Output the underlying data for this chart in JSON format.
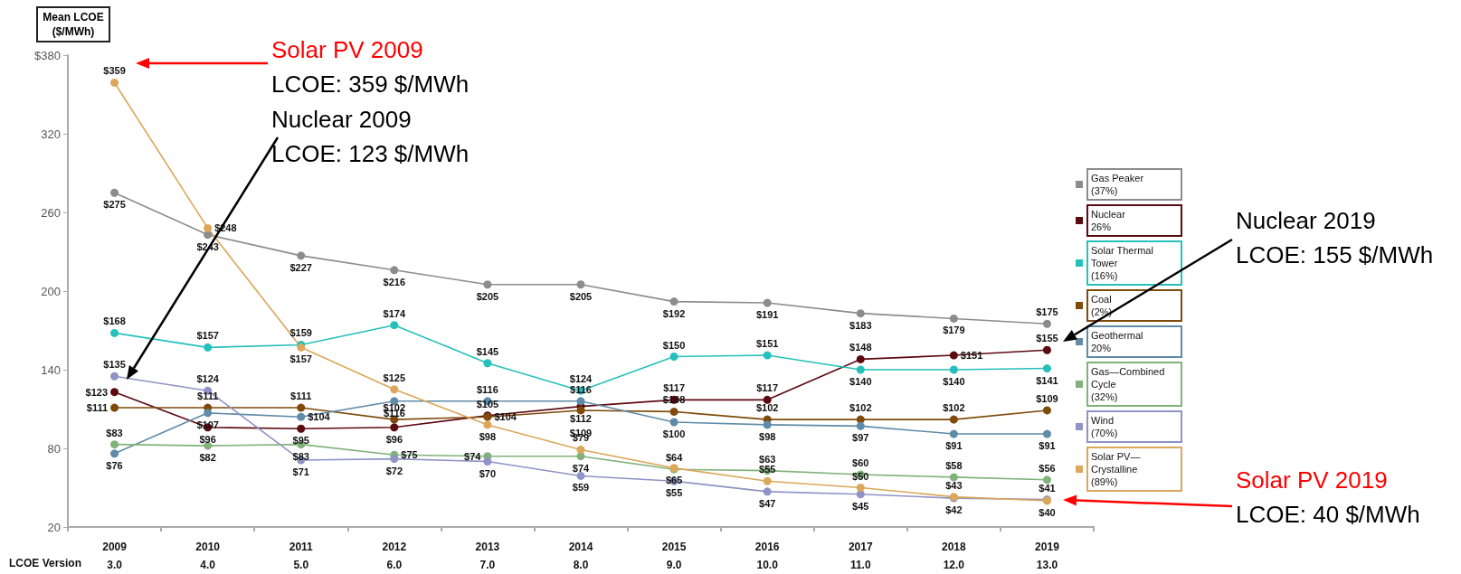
{
  "chart_data": {
    "type": "line",
    "ylabel": "Mean LCOE ($/MWh)",
    "categories": [
      "2009\n3.0",
      "2010\n4.0",
      "2011\n5.0",
      "2012\n6.0",
      "2013\n7.0",
      "2014\n8.0",
      "2015\n9.0",
      "2016\n10.0",
      "2017\n11.0",
      "2018\n12.0",
      "2019\n13.0"
    ],
    "ylim": [
      20,
      380
    ],
    "yticks": [
      20,
      80,
      140,
      200,
      260,
      320,
      {
        "value": 380,
        "label": "$380"
      }
    ],
    "grid": false,
    "legend": "right",
    "marker": "circle",
    "line_style": "solid",
    "series": [
      {
        "name": "Gas Peaker\n(37%)",
        "color": "#8c8c8c",
        "values": [
          275,
          243,
          227,
          216,
          205,
          205,
          192,
          191,
          183,
          179,
          175
        ],
        "value_labels": [
          "$275",
          "$243",
          "$227",
          "$216",
          "$205",
          "$205",
          "$192",
          "$191",
          "$183",
          "$179",
          "$175"
        ]
      },
      {
        "name": "Nuclear\n26%",
        "color": "#5c0a10",
        "values": [
          123,
          96,
          95,
          96,
          105,
          112,
          117,
          117,
          148,
          151,
          155
        ],
        "value_labels": [
          "$123",
          "$96",
          "$95",
          "$96",
          "$105",
          "$112",
          "$117",
          "$117",
          "$148",
          "$151",
          "$155"
        ]
      },
      {
        "name": "Solar Thermal\nTower\n(16%)",
        "color": "#25c0bb",
        "values": [
          168,
          157,
          159,
          174,
          145,
          124,
          150,
          151,
          140,
          140,
          141
        ],
        "value_labels": [
          "$168",
          "$157",
          "$159",
          "$174",
          "$145",
          "$124",
          "$150",
          "$151",
          "$140",
          "$140",
          "$141"
        ]
      },
      {
        "name": "Coal\n(2%)",
        "color": "#7f4a0a",
        "values": [
          111,
          111,
          111,
          102,
          104,
          109,
          108,
          102,
          102,
          102,
          109
        ],
        "value_labels": [
          "$111",
          "$111",
          "$111",
          "$102",
          "$104",
          "$109",
          "$108",
          "$102",
          "$102",
          "$102",
          "$109"
        ]
      },
      {
        "name": "Geothermal\n20%",
        "color": "#5f8ba8",
        "values": [
          76,
          107,
          104,
          116,
          116,
          116,
          100,
          98,
          97,
          91,
          91
        ],
        "value_labels": [
          "$76",
          "$107",
          "$104",
          "$116",
          "$116",
          "$116",
          "$100",
          "$98",
          "$97",
          "$91",
          "$91"
        ]
      },
      {
        "name": "Gas—Combined\nCycle\n(32%)",
        "color": "#80b27a",
        "values": [
          83,
          82,
          83,
          75,
          74,
          74,
          64,
          63,
          60,
          58,
          56
        ],
        "value_labels": [
          "$83",
          "$82",
          "$83",
          "$75",
          "$74",
          "$74",
          "$64",
          "$63",
          "$60",
          "$58",
          "$56"
        ]
      },
      {
        "name": "Wind\n(70%)",
        "color": "#8f93c5",
        "values": [
          135,
          124,
          71,
          72,
          70,
          59,
          55,
          47,
          45,
          42,
          41
        ],
        "value_labels": [
          "$135",
          "$124",
          "$71",
          "$72",
          "$70",
          "$59",
          "$55",
          "$47",
          "$45",
          "$42",
          "$41"
        ]
      },
      {
        "name": "Solar PV—\nCrystalline\n(89%)",
        "color": "#dba75a",
        "values": [
          359,
          248,
          157,
          125,
          98,
          79,
          65,
          55,
          50,
          43,
          40
        ],
        "value_labels": [
          "$359",
          "$248",
          "$157",
          "$125",
          "$98",
          "$79",
          "$65",
          "$55",
          "$50",
          "$43",
          "$40"
        ]
      }
    ],
    "annotations": [
      "LCOE Version",
      "Solar PV 2009\nLCOE: 359 $/MWh",
      "Nuclear 2009\nLCOE: 123 $/MWh",
      "Nuclear 2019\nLCOE: 155 $/MWh",
      "Solar PV 2019\nLCOE: 40 $/MWh"
    ]
  }
}
